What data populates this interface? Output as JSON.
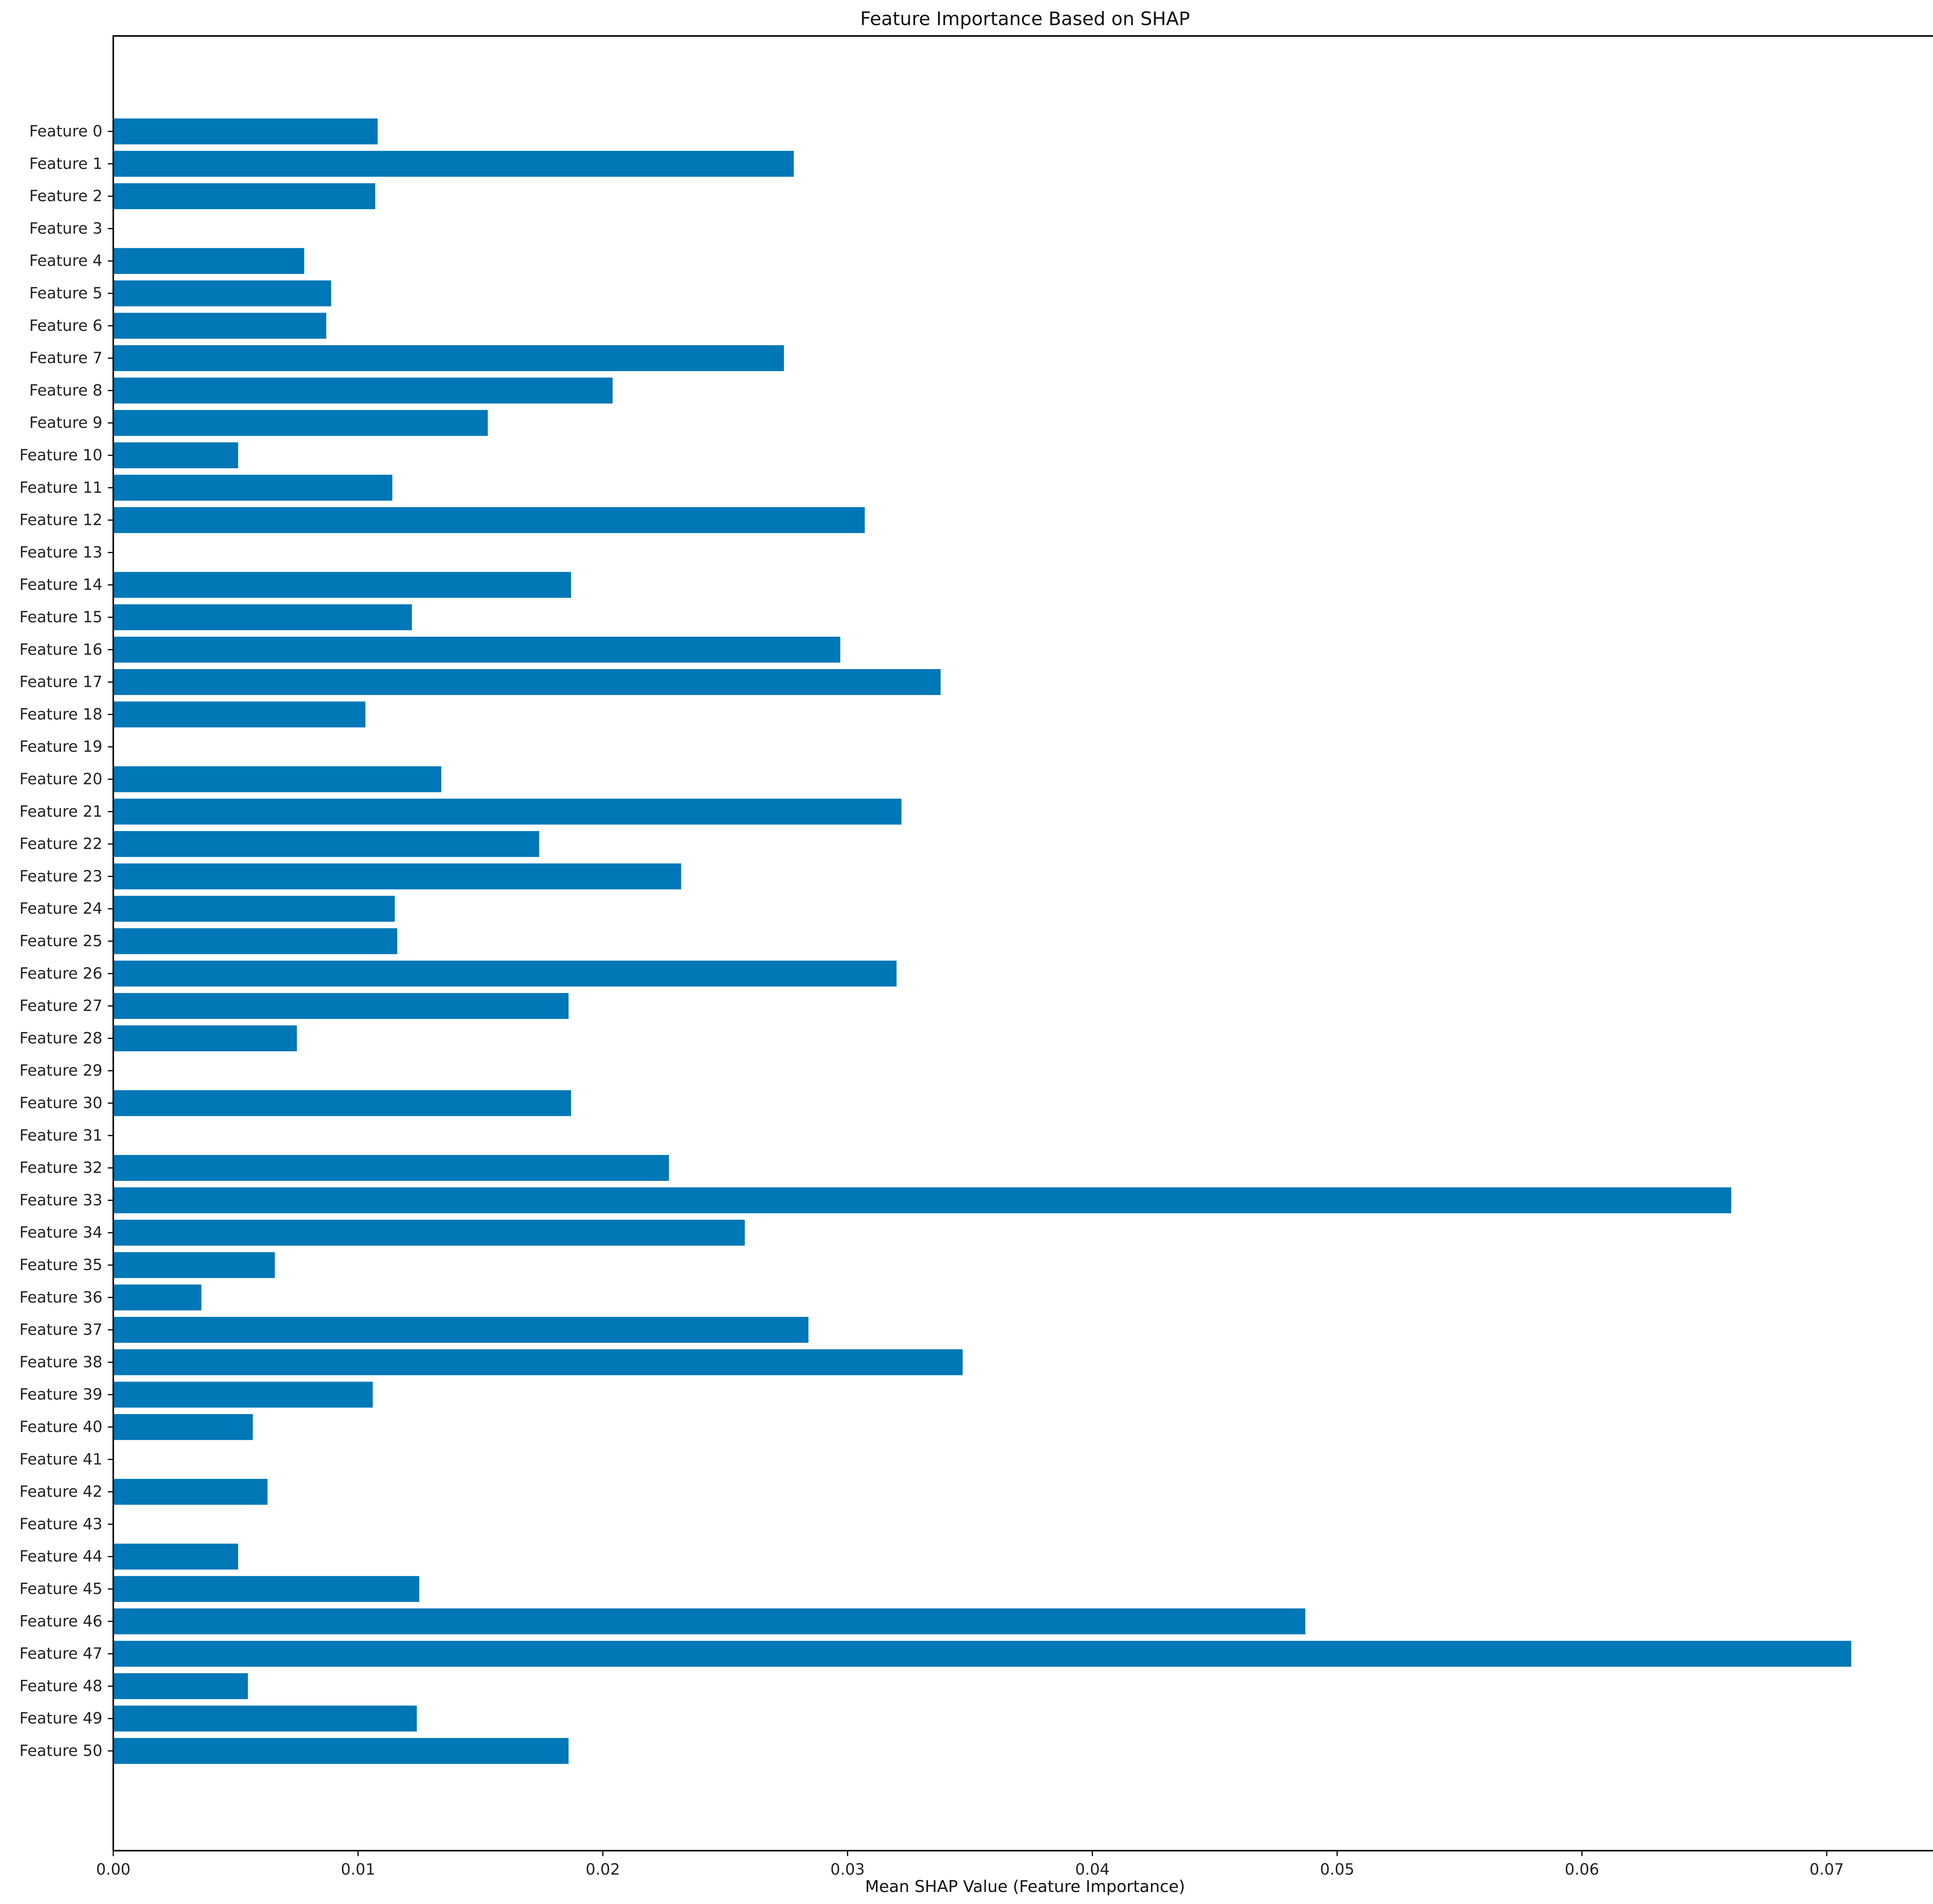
{
  "chart_data": {
    "type": "bar",
    "orientation": "horizontal",
    "title": "Feature Importance Based on SHAP",
    "xlabel": "Mean SHAP Value (Feature Importance)",
    "ylabel": "",
    "xlim": [
      0,
      0.0745
    ],
    "xticks": [
      0.0,
      0.01,
      0.02,
      0.03,
      0.04,
      0.05,
      0.06,
      0.07
    ],
    "xtick_labels": [
      "0.00",
      "0.01",
      "0.02",
      "0.03",
      "0.04",
      "0.05",
      "0.06",
      "0.07"
    ],
    "grid": false,
    "bar_color": "#0077b6",
    "categories": [
      "Feature 0",
      "Feature 1",
      "Feature 2",
      "Feature 3",
      "Feature 4",
      "Feature 5",
      "Feature 6",
      "Feature 7",
      "Feature 8",
      "Feature 9",
      "Feature 10",
      "Feature 11",
      "Feature 12",
      "Feature 13",
      "Feature 14",
      "Feature 15",
      "Feature 16",
      "Feature 17",
      "Feature 18",
      "Feature 19",
      "Feature 20",
      "Feature 21",
      "Feature 22",
      "Feature 23",
      "Feature 24",
      "Feature 25",
      "Feature 26",
      "Feature 27",
      "Feature 28",
      "Feature 29",
      "Feature 30",
      "Feature 31",
      "Feature 32",
      "Feature 33",
      "Feature 34",
      "Feature 35",
      "Feature 36",
      "Feature 37",
      "Feature 38",
      "Feature 39",
      "Feature 40",
      "Feature 41",
      "Feature 42",
      "Feature 43",
      "Feature 44",
      "Feature 45",
      "Feature 46",
      "Feature 47",
      "Feature 48",
      "Feature 49",
      "Feature 50"
    ],
    "values": [
      0.0108,
      0.0278,
      0.0107,
      0.0,
      0.0078,
      0.0089,
      0.0087,
      0.0274,
      0.0204,
      0.0153,
      0.0051,
      0.0114,
      0.0307,
      0.0,
      0.0187,
      0.0122,
      0.0297,
      0.0338,
      0.0103,
      0.0,
      0.0134,
      0.0322,
      0.0174,
      0.0232,
      0.0115,
      0.0116,
      0.032,
      0.0186,
      0.0075,
      0.0,
      0.0187,
      0.0,
      0.0227,
      0.0661,
      0.0258,
      0.0066,
      0.0036,
      0.0284,
      0.0347,
      0.0106,
      0.0057,
      0.0,
      0.0063,
      0.0,
      0.0051,
      0.0125,
      0.0487,
      0.071,
      0.0055,
      0.0124,
      0.0186
    ]
  }
}
